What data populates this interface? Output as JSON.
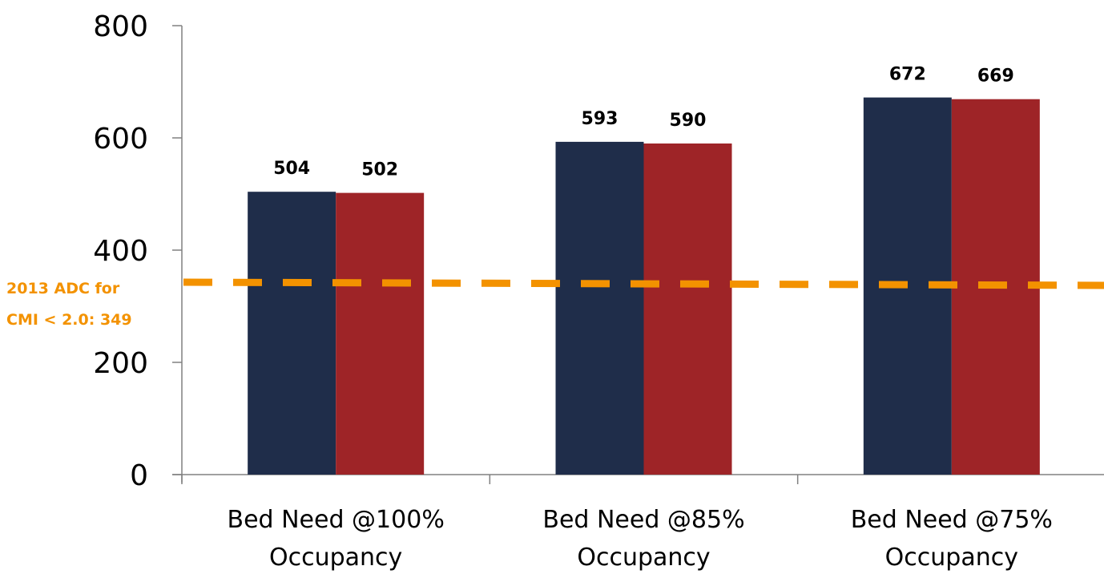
{
  "chart_data": {
    "type": "bar",
    "categories": [
      "Bed Need @100% Occupancy",
      "Bed Need @85% Occupancy",
      "Bed Need @75% Occupancy"
    ],
    "category_lines": [
      [
        "Bed Need @100%",
        "Occupancy"
      ],
      [
        "Bed Need @85%",
        "Occupancy"
      ],
      [
        "Bed Need @75%",
        "Occupancy"
      ]
    ],
    "series": [
      {
        "values": [
          504,
          593,
          672
        ],
        "color": "#1f2d4a"
      },
      {
        "values": [
          502,
          590,
          669
        ],
        "color": "#9e2427"
      }
    ],
    "ylim": [
      0,
      800
    ],
    "yticks": [
      0,
      200,
      400,
      600,
      800
    ],
    "grid": false,
    "legend": "none",
    "reference_line": {
      "value": 349,
      "label_lines": [
        "2013 ADC for",
        "CMI < 2.0: 349"
      ],
      "color": "#f39200",
      "style": "dashed"
    }
  }
}
